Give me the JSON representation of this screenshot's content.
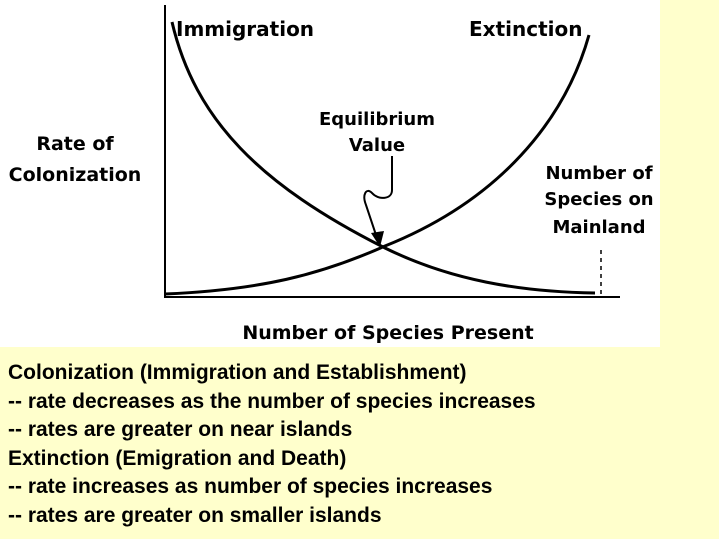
{
  "diagram": {
    "y_axis_label_line1": "Rate of",
    "y_axis_label_line2": "Colonization",
    "x_axis_label": "Number of Species Present",
    "immigration_label": "Immigration",
    "extinction_label": "Extinction",
    "equilibrium_label_line1": "Equilibrium",
    "equilibrium_label_line2": "Value",
    "mainland_label_line1": "Number of",
    "mainland_label_line2": "Species on",
    "mainland_label_line3": "Mainland"
  },
  "caption": {
    "lines": [
      "Colonization (Immigration and Establishment)",
      "-- rate decreases as the number of species increases",
      "-- rates are greater on near islands",
      "Extinction (Emigration and Death)",
      "-- rate increases as number of species increases",
      "-- rates are greater on smaller islands"
    ]
  }
}
